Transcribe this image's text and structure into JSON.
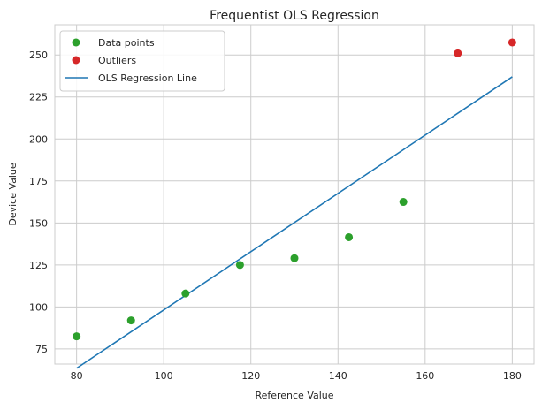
{
  "chart_data": {
    "type": "scatter",
    "title": "Frequentist OLS Regression",
    "xlabel": "Reference Value",
    "ylabel": "Device Value",
    "xlim": [
      75,
      185
    ],
    "ylim": [
      66,
      268
    ],
    "xticks": [
      80,
      100,
      120,
      140,
      160,
      180
    ],
    "yticks": [
      75,
      100,
      125,
      150,
      175,
      200,
      225,
      250
    ],
    "grid": true,
    "legend_position": "top-left",
    "series": [
      {
        "name": "Data points",
        "kind": "scatter",
        "color": "#2ca02c",
        "x": [
          80,
          92.5,
          105,
          117.5,
          130,
          142.5,
          155
        ],
        "y": [
          82.5,
          92,
          108,
          125,
          129,
          141.5,
          162.5
        ]
      },
      {
        "name": "Outliers",
        "kind": "scatter",
        "color": "#d62728",
        "x": [
          167.5,
          180
        ],
        "y": [
          251,
          257.5
        ]
      },
      {
        "name": "OLS Regression Line",
        "kind": "line",
        "color": "#1f77b4",
        "x": [
          80,
          180
        ],
        "y": [
          63.5,
          237
        ]
      }
    ]
  }
}
